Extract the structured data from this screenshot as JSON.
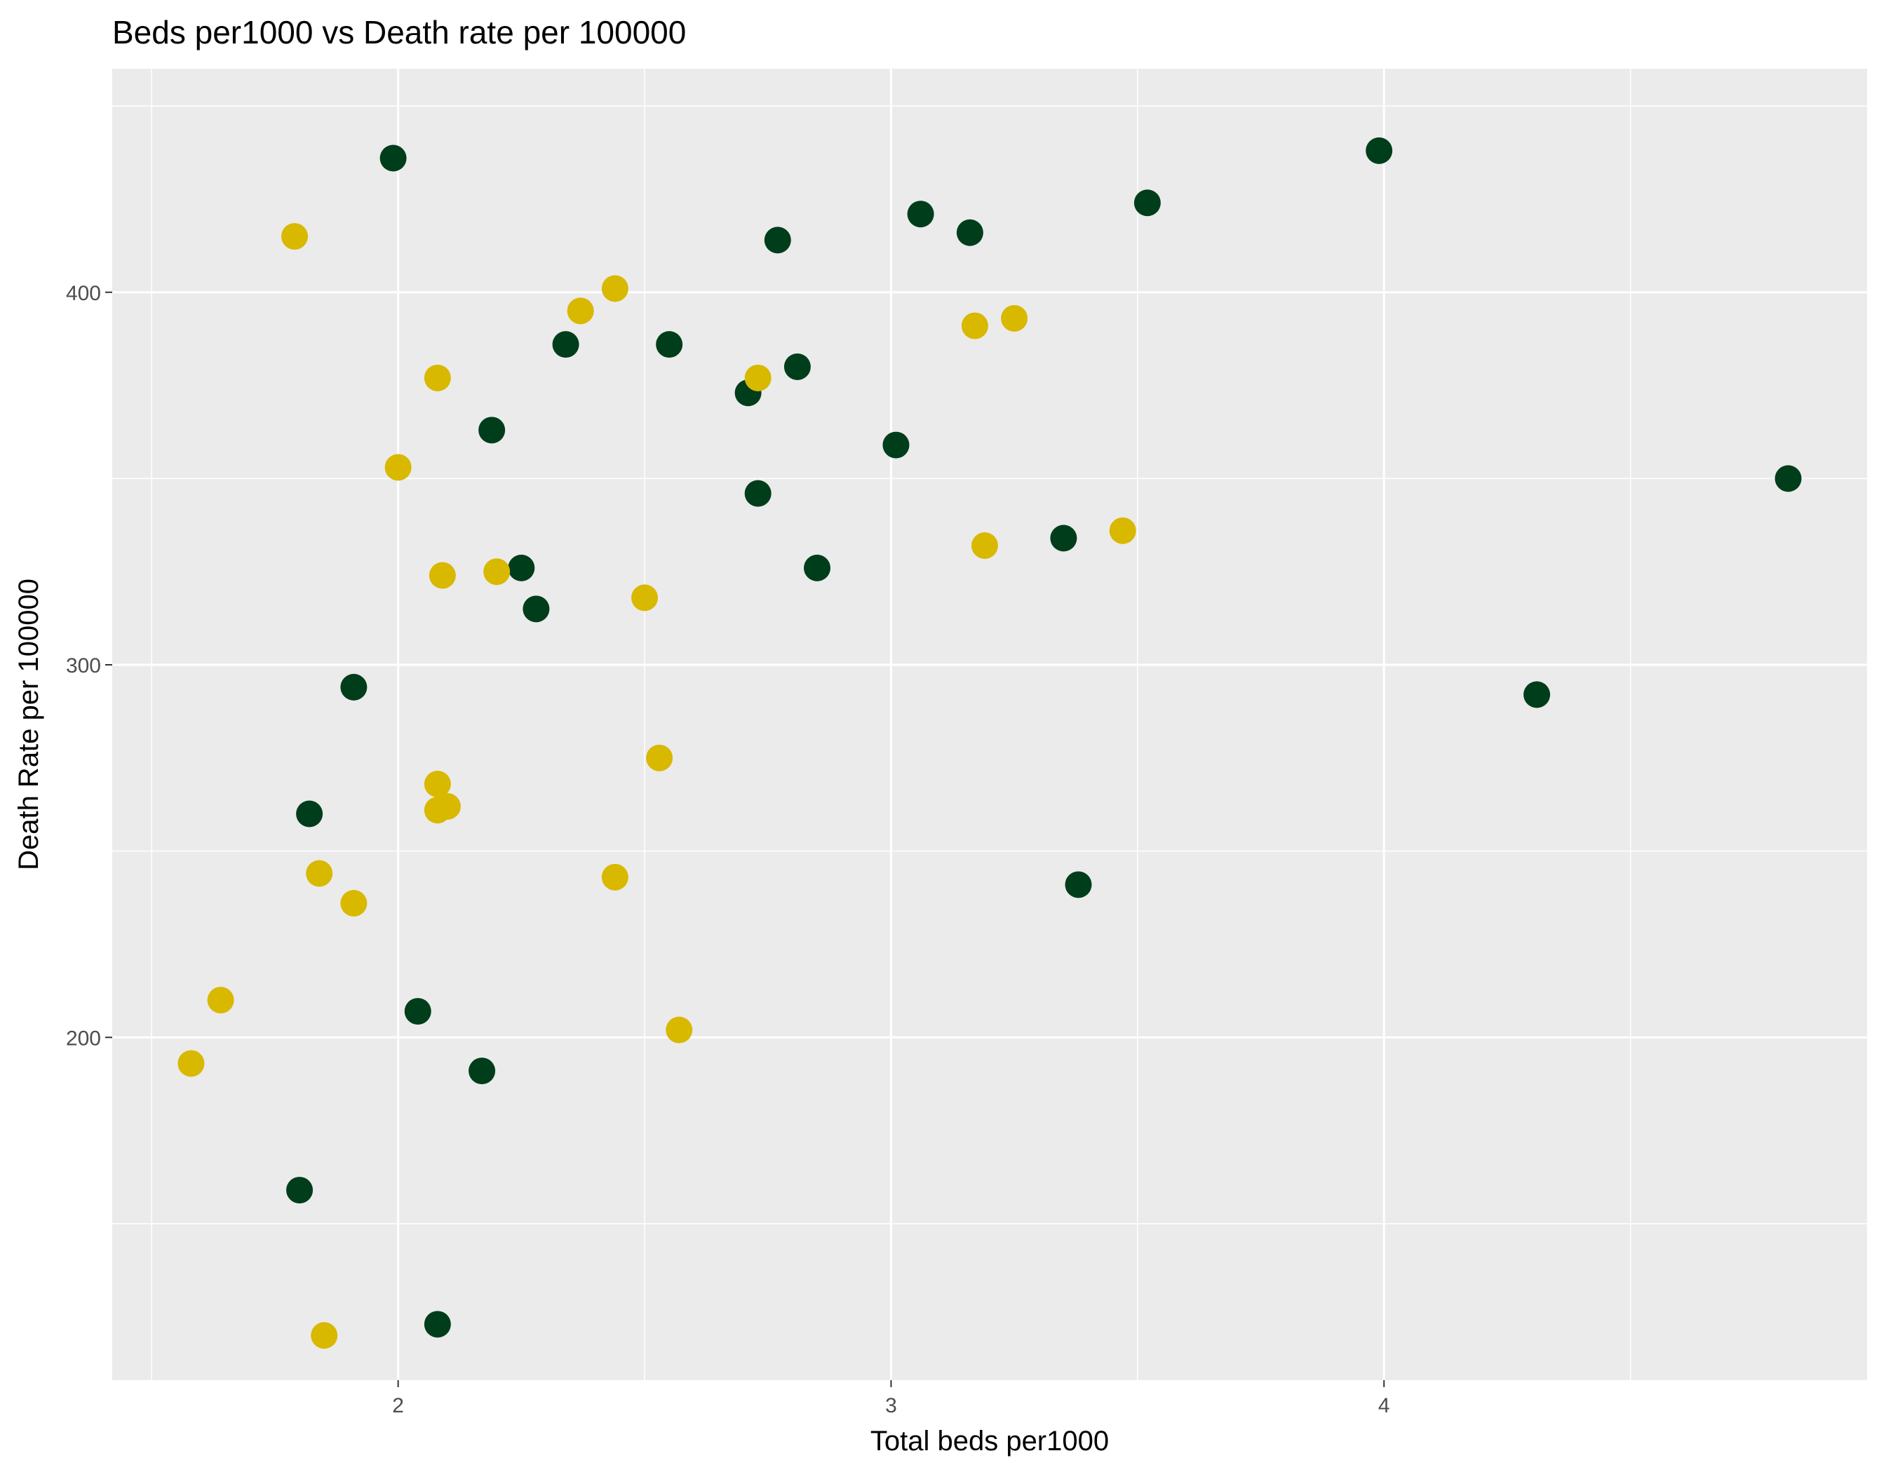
{
  "chart_data": {
    "type": "scatter",
    "title": "Beds per1000 vs Death rate per 100000",
    "xlabel": "Total beds per1000",
    "ylabel": "Death Rate per 100000",
    "xlim": [
      1.42,
      4.98
    ],
    "ylim": [
      108,
      460
    ],
    "x_ticks": [
      {
        "value": 2,
        "label": "2"
      },
      {
        "value": 3,
        "label": "3"
      },
      {
        "value": 4,
        "label": "4"
      }
    ],
    "x_minor": [
      1.5,
      2.5,
      3.5,
      4.5
    ],
    "y_ticks": [
      {
        "value": 200,
        "label": "200"
      },
      {
        "value": 300,
        "label": "300"
      },
      {
        "value": 400,
        "label": "400"
      }
    ],
    "y_minor": [
      150,
      250,
      350,
      450
    ],
    "grid": true,
    "legend": "none",
    "panel_color": "#EBEBEB",
    "gridline_color": "#FFFFFF",
    "series": [
      {
        "color": "#003D1A",
        "points": [
          {
            "x": 1.99,
            "y": 436
          },
          {
            "x": 3.99,
            "y": 438
          },
          {
            "x": 3.06,
            "y": 421
          },
          {
            "x": 3.52,
            "y": 424
          },
          {
            "x": 2.77,
            "y": 414
          },
          {
            "x": 3.16,
            "y": 416
          },
          {
            "x": 2.34,
            "y": 386
          },
          {
            "x": 2.55,
            "y": 386
          },
          {
            "x": 2.81,
            "y": 380
          },
          {
            "x": 2.71,
            "y": 373
          },
          {
            "x": 2.19,
            "y": 363
          },
          {
            "x": 3.01,
            "y": 359
          },
          {
            "x": 4.82,
            "y": 350
          },
          {
            "x": 2.73,
            "y": 346
          },
          {
            "x": 3.35,
            "y": 334
          },
          {
            "x": 2.25,
            "y": 326
          },
          {
            "x": 2.85,
            "y": 326
          },
          {
            "x": 2.28,
            "y": 315
          },
          {
            "x": 1.91,
            "y": 294
          },
          {
            "x": 4.31,
            "y": 292
          },
          {
            "x": 1.82,
            "y": 260
          },
          {
            "x": 3.38,
            "y": 241
          },
          {
            "x": 2.04,
            "y": 207
          },
          {
            "x": 2.17,
            "y": 191
          },
          {
            "x": 1.8,
            "y": 159
          },
          {
            "x": 2.08,
            "y": 123
          }
        ]
      },
      {
        "color": "#D9B800",
        "points": [
          {
            "x": 1.79,
            "y": 415
          },
          {
            "x": 2.44,
            "y": 401
          },
          {
            "x": 2.37,
            "y": 395
          },
          {
            "x": 3.25,
            "y": 393
          },
          {
            "x": 3.17,
            "y": 391
          },
          {
            "x": 2.08,
            "y": 377
          },
          {
            "x": 2.73,
            "y": 377
          },
          {
            "x": 2.0,
            "y": 353
          },
          {
            "x": 3.47,
            "y": 336
          },
          {
            "x": 3.19,
            "y": 332
          },
          {
            "x": 2.2,
            "y": 325
          },
          {
            "x": 2.09,
            "y": 324
          },
          {
            "x": 2.5,
            "y": 318
          },
          {
            "x": 2.53,
            "y": 275
          },
          {
            "x": 2.08,
            "y": 268
          },
          {
            "x": 2.1,
            "y": 262
          },
          {
            "x": 2.08,
            "y": 261
          },
          {
            "x": 1.84,
            "y": 244
          },
          {
            "x": 2.44,
            "y": 243
          },
          {
            "x": 1.91,
            "y": 236
          },
          {
            "x": 1.64,
            "y": 210
          },
          {
            "x": 2.57,
            "y": 202
          },
          {
            "x": 1.58,
            "y": 193
          },
          {
            "x": 1.85,
            "y": 120
          }
        ]
      }
    ]
  }
}
